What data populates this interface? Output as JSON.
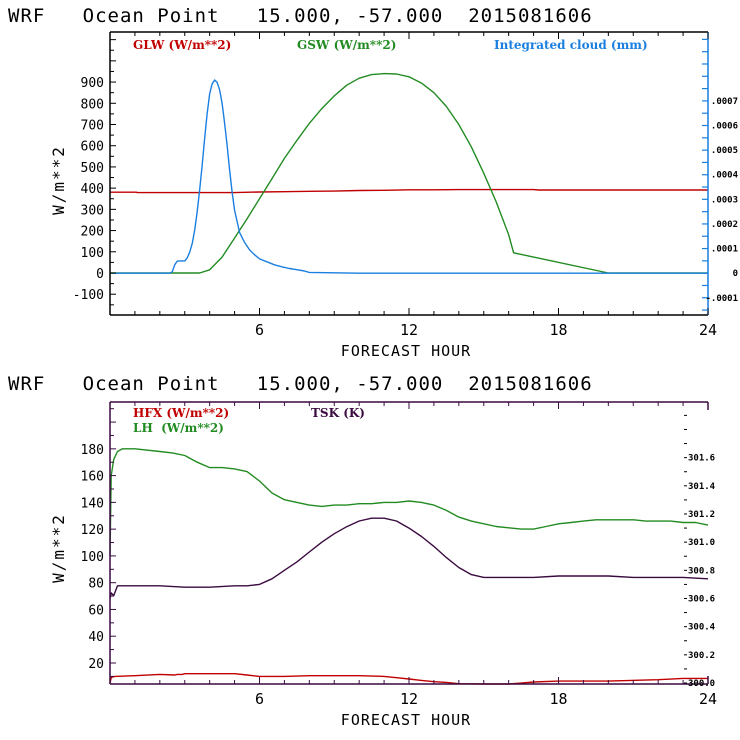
{
  "chart_data": [
    {
      "type": "line",
      "title": "WRF   Ocean Point   15.000, -57.000  2015081606",
      "xlabel": "FORECAST HOUR",
      "ylabel": "W/m**2",
      "xlim": [
        0,
        24
      ],
      "ylim": [
        -198,
        1136
      ],
      "x_ticks": [
        "6",
        "12",
        "18",
        "24"
      ],
      "x_tick_values": [
        6,
        12,
        18,
        24
      ],
      "y_ticks": [
        "-100",
        "0",
        "100",
        "200",
        "300",
        "400",
        "500",
        "600",
        "700",
        "800",
        "900"
      ],
      "y_tick_values": [
        -100,
        0,
        100,
        200,
        300,
        400,
        500,
        600,
        700,
        800,
        900
      ],
      "y2_ticks": [
        "-.0001",
        "0",
        ".0001",
        ".0002",
        ".0003",
        ".0004",
        ".0005",
        ".0006",
        ".0007"
      ],
      "y2_tick_values": [
        -0.0001,
        0,
        0.0001,
        0.0002,
        0.0003,
        0.0004,
        0.0005,
        0.0006,
        0.0007
      ],
      "y2lim": [
        -0.00017,
        0.00098
      ],
      "frame_color": "#000000",
      "right_axis_color": "#1a7fe0",
      "grid": false,
      "legend_placement": "top",
      "series": [
        {
          "name": "GLW (W/m**2)",
          "color": "#c00000",
          "axis": "left",
          "x": [
            0,
            1.05,
            1.1,
            2.6,
            3,
            4,
            5,
            6,
            7,
            8,
            9,
            10,
            11,
            12,
            13,
            14,
            15,
            16,
            17,
            17.2,
            18,
            20,
            22,
            24
          ],
          "values": [
            381,
            381,
            379,
            379,
            379,
            379,
            379,
            382,
            383,
            385,
            386,
            389,
            390,
            392,
            392,
            393,
            393,
            393,
            393,
            391,
            391,
            391,
            391,
            391
          ]
        },
        {
          "name": "GSW (W/m**2)",
          "color": "#228b22",
          "axis": "left",
          "x": [
            0,
            2,
            3,
            3.6,
            4,
            4.5,
            5,
            5.5,
            6,
            6.5,
            7,
            7.5,
            8,
            8.5,
            9,
            9.5,
            10,
            10.5,
            11,
            11.5,
            12,
            12.5,
            13,
            13.5,
            14,
            14.5,
            15,
            15.5,
            16,
            16.2,
            20,
            24
          ],
          "values": [
            0,
            0,
            0,
            0,
            15,
            75,
            165,
            255,
            350,
            445,
            540,
            625,
            705,
            775,
            835,
            885,
            918,
            935,
            940,
            938,
            925,
            895,
            850,
            785,
            700,
            595,
            470,
            335,
            180,
            95,
            0,
            0
          ],
          "fill_mode": "curve"
        },
        {
          "name": "Integrated cloud (mm)",
          "color": "#1a7fe0",
          "axis": "right",
          "x": [
            0,
            1,
            2,
            2.4,
            2.5,
            2.6,
            2.7,
            2.9,
            3.0,
            3.1,
            3.2,
            3.3,
            3.4,
            3.5,
            3.6,
            3.7,
            3.8,
            3.9,
            4.0,
            4.1,
            4.2,
            4.3,
            4.4,
            4.5,
            4.6,
            4.7,
            4.8,
            4.9,
            5.0,
            5.2,
            5.4,
            5.6,
            5.8,
            6.0,
            6.3,
            6.6,
            6.9,
            7.2,
            7.5,
            7.8,
            8.0,
            10,
            14,
            18,
            24
          ],
          "values": [
            0,
            0,
            0,
            0,
            6e-06,
            3.5e-05,
            4.9e-05,
            5e-05,
            5e-05,
            6.2e-05,
            8.5e-05,
            0.00012,
            0.000175,
            0.00025,
            0.00034,
            0.00044,
            0.00055,
            0.00065,
            0.00073,
            0.00077,
            0.000785,
            0.000775,
            0.000745,
            0.00069,
            0.00061,
            0.00052,
            0.00042,
            0.00033,
            0.000255,
            0.000165,
            0.000125,
            9.5e-05,
            7.5e-05,
            5.8e-05,
            4.6e-05,
            3.4e-05,
            2.6e-05,
            1.9e-05,
            1.4e-05,
            9e-06,
            3e-06,
            0,
            0,
            0,
            0
          ]
        }
      ]
    },
    {
      "type": "line",
      "title": "WRF   Ocean Point   15.000, -57.000  2015081606",
      "xlabel": "FORECAST HOUR",
      "ylabel": "W/m**2",
      "xlim": [
        0,
        24
      ],
      "ylim": [
        4.3,
        215
      ],
      "x_ticks": [
        "6",
        "12",
        "18",
        "24"
      ],
      "x_tick_values": [
        6,
        12,
        18,
        24
      ],
      "y_ticks": [
        "20",
        "40",
        "60",
        "80",
        "100",
        "120",
        "140",
        "160",
        "180"
      ],
      "y_tick_values": [
        20,
        40,
        60,
        80,
        100,
        120,
        140,
        160,
        180
      ],
      "y2_ticks": [
        "300.0",
        "300.2",
        "300.4",
        "300.6",
        "300.8",
        "301.0",
        "301.2",
        "301.4",
        "301.6"
      ],
      "y2_tick_values": [
        300.0,
        300.2,
        300.4,
        300.6,
        300.8,
        301.0,
        301.2,
        301.4,
        301.6
      ],
      "y2lim": [
        299.993,
        301.995
      ],
      "frame_color": "#3a0a40",
      "grid": false,
      "legend_placement": "top-left",
      "series": [
        {
          "name": "HFX (W/m**2)",
          "color": "#c00000",
          "axis": "left",
          "x": [
            0,
            0.05,
            0.1,
            0.2,
            1,
            2,
            2.6,
            2.7,
            2.9,
            3,
            4,
            5,
            5.5,
            6,
            7,
            8,
            9,
            10,
            11,
            11.5,
            12,
            12.5,
            13,
            13.5,
            14,
            15,
            16,
            16.5,
            17,
            18,
            20,
            22,
            23,
            24
          ],
          "values": [
            5,
            9,
            9.5,
            10,
            10.5,
            11.5,
            11,
            11.5,
            11.5,
            12,
            12,
            12,
            11,
            10,
            10,
            10.5,
            10.5,
            10.5,
            10,
            9,
            8,
            7,
            6,
            5.5,
            4.5,
            4.3,
            4.3,
            5,
            5.8,
            6.5,
            6.5,
            7.5,
            8.5,
            8.5
          ]
        },
        {
          "name": "LH (W/m**2)",
          "color": "#228b22",
          "axis": "left",
          "x": [
            0,
            0.05,
            0.15,
            0.3,
            0.5,
            1,
            2,
            2.5,
            3,
            3.5,
            4,
            4.5,
            5,
            5.5,
            6,
            6.5,
            7,
            7.5,
            8,
            8.5,
            9,
            9.5,
            10,
            10.5,
            11,
            11.5,
            12,
            12.5,
            13,
            13.5,
            14,
            14.5,
            15,
            15.5,
            16,
            16.5,
            17,
            17.5,
            18,
            18.5,
            19,
            19.5,
            20,
            20.5,
            21,
            21.5,
            22,
            22.5,
            23,
            23.5,
            24
          ],
          "values": [
            100,
            160,
            172,
            178,
            180,
            180,
            178,
            177,
            175,
            170,
            166,
            166,
            165,
            163,
            156,
            147,
            142,
            140,
            138,
            137,
            138,
            138,
            139,
            139,
            140,
            140,
            141,
            140,
            138,
            134,
            129,
            126,
            124,
            122,
            121,
            120,
            120,
            122,
            124,
            125,
            126,
            127,
            127,
            127,
            127,
            126,
            126,
            126,
            125,
            125,
            123
          ]
        },
        {
          "name": "TSK (K)",
          "color": "#3a0a40",
          "axis": "right",
          "x": [
            0,
            0.05,
            0.15,
            0.3,
            1,
            2,
            3,
            4,
            5,
            5.5,
            6,
            6.5,
            7,
            7.5,
            8,
            8.5,
            9,
            9.5,
            10,
            10.5,
            11,
            11.5,
            12,
            12.5,
            13,
            13.5,
            14,
            14.5,
            15,
            15.5,
            16,
            17,
            18,
            19,
            20,
            21,
            22,
            23,
            24
          ],
          "values": [
            300.6,
            300.64,
            300.62,
            300.69,
            300.69,
            300.69,
            300.68,
            300.68,
            300.69,
            300.69,
            300.7,
            300.74,
            300.8,
            300.86,
            300.93,
            301.0,
            301.06,
            301.11,
            301.15,
            301.17,
            301.17,
            301.15,
            301.1,
            301.04,
            300.97,
            300.89,
            300.82,
            300.77,
            300.75,
            300.75,
            300.75,
            300.75,
            300.76,
            300.76,
            300.76,
            300.75,
            300.75,
            300.75,
            300.74
          ]
        }
      ]
    }
  ],
  "legend_top": {
    "glw": "GLW (W/m**2)",
    "gsw": "GSW (W/m**2)",
    "cloud": "Integrated cloud (mm)"
  },
  "legend_bottom": {
    "hfx": "HFX (W/m**2)",
    "lh": "LH  (W/m**2)",
    "tsk": "TSK (K)"
  }
}
